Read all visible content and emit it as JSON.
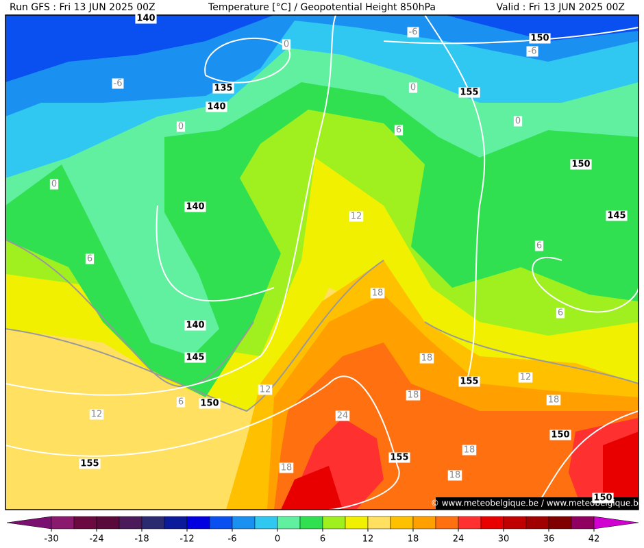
{
  "header": {
    "run": "Run GFS : Fri 13 JUN 2025 00Z",
    "title": "Temperature [°C] / Geopotential Height 850hPa",
    "valid": "Valid : Fri 13 JUN 2025 00Z"
  },
  "map": {
    "height_labels": [
      "140",
      "135",
      "140",
      "155",
      "150",
      "150",
      "145",
      "140",
      "140",
      "145",
      "150",
      "155",
      "155",
      "155",
      "150",
      "150"
    ],
    "isotherm_labels": [
      "-6",
      "-6",
      "-6",
      "0",
      "0",
      "0",
      "0",
      "0",
      "6",
      "6",
      "6",
      "6",
      "6",
      "12",
      "12",
      "12",
      "12",
      "18",
      "18",
      "18",
      "18",
      "18",
      "18",
      "18",
      "24"
    ],
    "watermark": "© www.meteobelgique.be / www.meteobelgique.be"
  },
  "colorbar": {
    "lim": [
      -33,
      45
    ],
    "ticks": [
      -30,
      -24,
      -18,
      -12,
      -6,
      0,
      6,
      12,
      18,
      24,
      30,
      36,
      42
    ],
    "colors": [
      "#7b1070",
      "#8a1a6e",
      "#6a0a40",
      "#5a0a3a",
      "#4a1a5a",
      "#2a2a70",
      "#0a1a9a",
      "#0000e0",
      "#0a50f0",
      "#1a90f0",
      "#30c8f0",
      "#60f0a0",
      "#30e050",
      "#a0f020",
      "#f0f000",
      "#ffe060",
      "#ffc000",
      "#ffa000",
      "#ff7010",
      "#ff3030",
      "#e80000",
      "#c00000",
      "#a00000",
      "#800000",
      "#900060",
      "#d000d0"
    ]
  }
}
